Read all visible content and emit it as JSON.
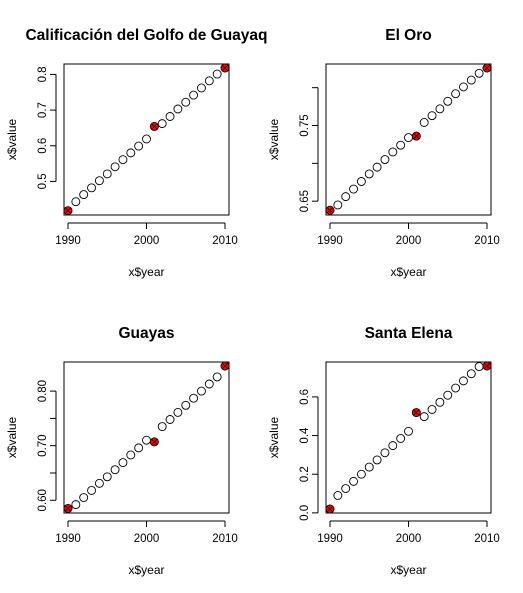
{
  "figure": {
    "highlight_color": "#ff0000",
    "point_color": "#000000"
  },
  "chart_data": [
    {
      "type": "scatter",
      "title": "Calificación del Golfo de Guayaq",
      "xlabel": "x$year",
      "ylabel": "x$value",
      "xlim": [
        1990,
        2010
      ],
      "ylim": [
        0.417,
        0.818
      ],
      "xticks": [
        1990,
        2000,
        2010
      ],
      "yticks": [
        0.5,
        0.6,
        0.7,
        0.8
      ],
      "ytick_labels": [
        "0.5",
        "0.6",
        "0.7",
        "0.8"
      ],
      "x": [
        1990,
        1991,
        1992,
        1993,
        1994,
        1995,
        1996,
        1997,
        1998,
        1999,
        2000,
        2001,
        2002,
        2003,
        2004,
        2005,
        2006,
        2007,
        2008,
        2009,
        2010
      ],
      "y": [
        0.418,
        0.443,
        0.463,
        0.482,
        0.502,
        0.521,
        0.541,
        0.561,
        0.58,
        0.599,
        0.619,
        0.654,
        0.662,
        0.682,
        0.703,
        0.722,
        0.742,
        0.762,
        0.782,
        0.801,
        0.818
      ],
      "highlight_x": [
        1990,
        2001,
        2010
      ],
      "highlight_y": [
        0.418,
        0.654,
        0.818
      ]
    },
    {
      "type": "scatter",
      "title": "El Oro",
      "xlabel": "x$year",
      "ylabel": "x$value",
      "xlim": [
        1990,
        2010
      ],
      "ylim": [
        0.637,
        0.826
      ],
      "xticks": [
        1990,
        2000,
        2010
      ],
      "yticks": [
        0.65,
        0.75
      ],
      "ytick_labels": [
        "0.65",
        "0.75"
      ],
      "minor_yticks": [
        0.7,
        0.8
      ],
      "x": [
        1990,
        1991,
        1992,
        1993,
        1994,
        1995,
        1996,
        1997,
        1998,
        1999,
        2000,
        2001,
        2002,
        2003,
        2004,
        2005,
        2006,
        2007,
        2008,
        2009,
        2010
      ],
      "y": [
        0.638,
        0.645,
        0.656,
        0.666,
        0.676,
        0.686,
        0.695,
        0.705,
        0.715,
        0.724,
        0.734,
        0.736,
        0.754,
        0.763,
        0.772,
        0.782,
        0.792,
        0.801,
        0.81,
        0.819,
        0.826
      ],
      "highlight_x": [
        1990,
        2001,
        2010
      ],
      "highlight_y": [
        0.638,
        0.736,
        0.826
      ]
    },
    {
      "type": "scatter",
      "title": "Guayas",
      "xlabel": "x$year",
      "ylabel": "x$value",
      "xlim": [
        1990,
        2010
      ],
      "ylim": [
        0.584,
        0.846
      ],
      "xticks": [
        1990,
        2000,
        2010
      ],
      "yticks": [
        0.6,
        0.7,
        0.8
      ],
      "ytick_labels": [
        "0.60",
        "0.70",
        "0.80"
      ],
      "minor_yticks": [
        0.65,
        0.75
      ],
      "x": [
        1990,
        1991,
        1992,
        1993,
        1994,
        1995,
        1996,
        1997,
        1998,
        1999,
        2000,
        2001,
        2002,
        2003,
        2004,
        2005,
        2006,
        2007,
        2008,
        2009,
        2010
      ],
      "y": [
        0.585,
        0.592,
        0.605,
        0.618,
        0.631,
        0.643,
        0.656,
        0.669,
        0.683,
        0.696,
        0.71,
        0.707,
        0.735,
        0.748,
        0.761,
        0.774,
        0.787,
        0.8,
        0.813,
        0.826,
        0.846
      ],
      "highlight_x": [
        1990,
        2001,
        2010
      ],
      "highlight_y": [
        0.585,
        0.707,
        0.846
      ]
    },
    {
      "type": "scatter",
      "title": "Santa Elena",
      "xlabel": "x$year",
      "ylabel": "x$value",
      "xlim": [
        1990,
        2010
      ],
      "ylim": [
        0.02,
        0.76
      ],
      "xticks": [
        1990,
        2000,
        2010
      ],
      "yticks": [
        0.0,
        0.2,
        0.4,
        0.6
      ],
      "ytick_labels": [
        "0.0",
        "0.2",
        "0.4",
        "0.6"
      ],
      "x": [
        1990,
        1991,
        1992,
        1993,
        1994,
        1995,
        1996,
        1997,
        1998,
        1999,
        2000,
        2001,
        2002,
        2003,
        2004,
        2005,
        2006,
        2007,
        2008,
        2009,
        2010
      ],
      "y": [
        0.02,
        0.09,
        0.126,
        0.163,
        0.2,
        0.237,
        0.274,
        0.311,
        0.348,
        0.385,
        0.422,
        0.519,
        0.498,
        0.535,
        0.572,
        0.609,
        0.646,
        0.683,
        0.72,
        0.757,
        0.76
      ],
      "highlight_x": [
        1990,
        2001,
        2010
      ],
      "highlight_y": [
        0.02,
        0.519,
        0.76
      ]
    }
  ]
}
